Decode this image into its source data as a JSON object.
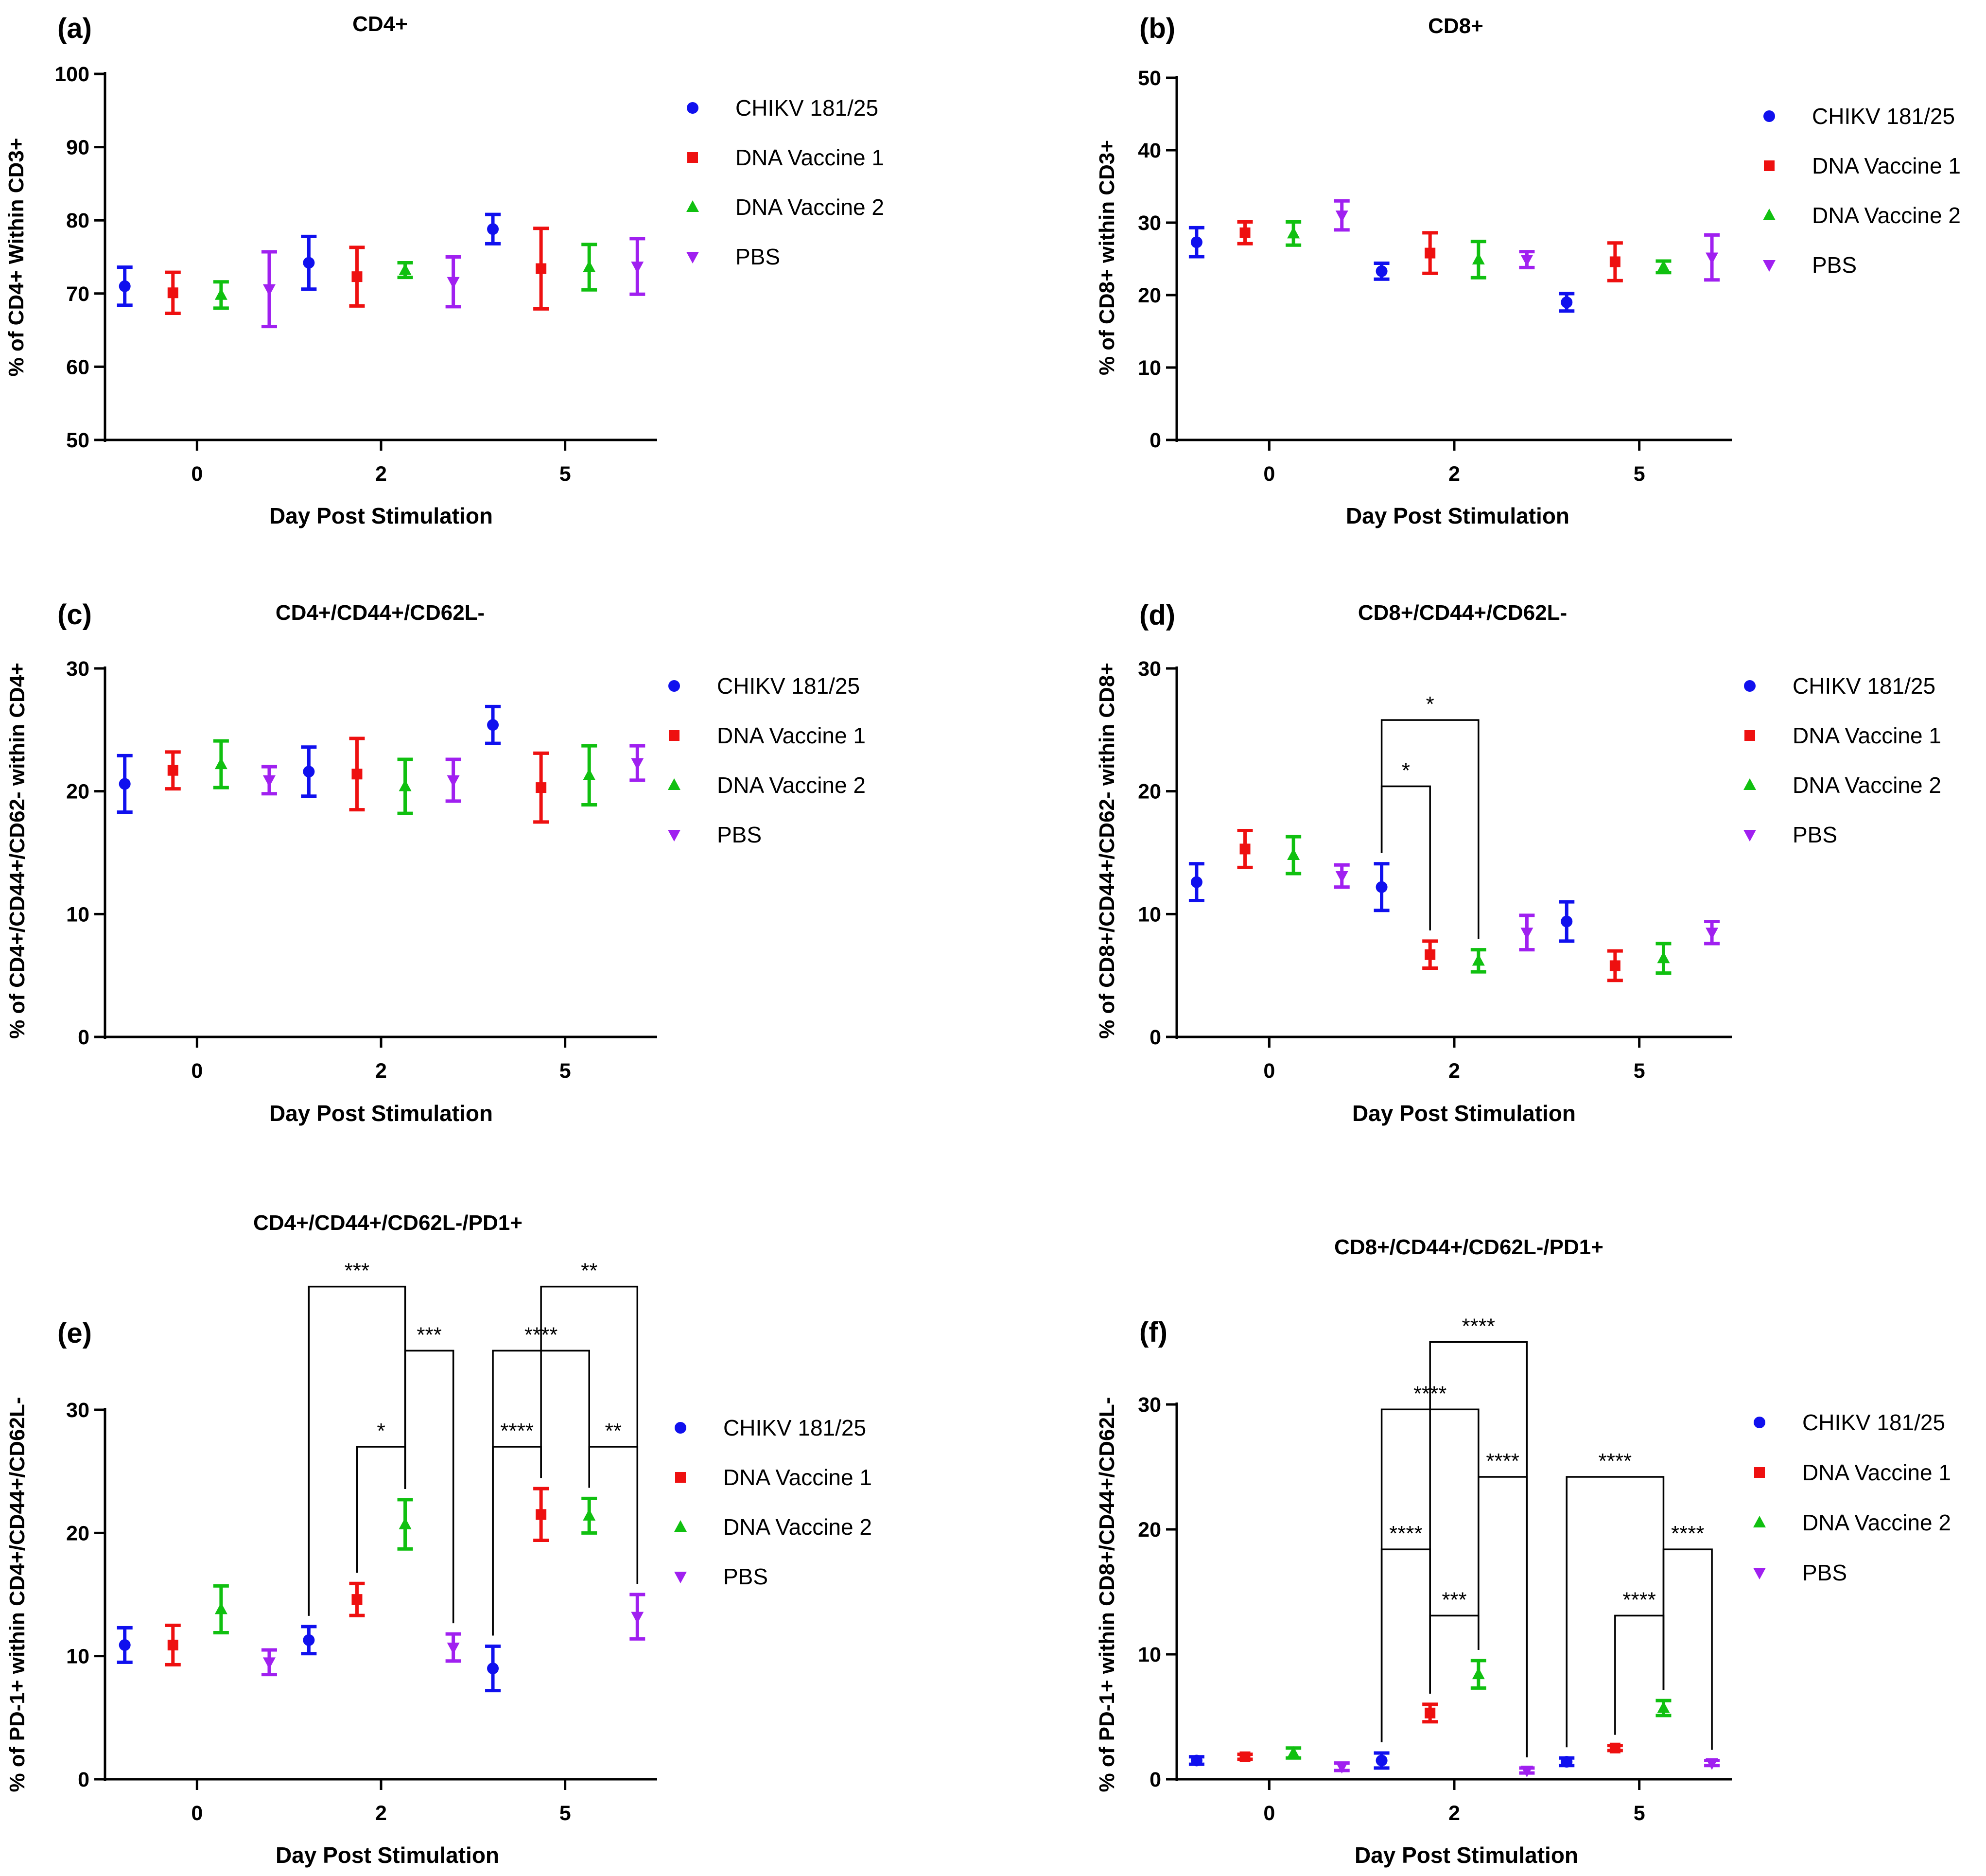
{
  "chart_data": [
    {
      "panel_label": "(a)",
      "type": "scatter",
      "title": "CD4+",
      "xlabel": "Day Post Stimulation",
      "ylabel": "% of CD4+ Within CD3+",
      "ylim": [
        50,
        100
      ],
      "yticks": [
        "50",
        "60",
        "70",
        "80",
        "90",
        "100"
      ],
      "categories": [
        "0",
        "2",
        "5"
      ],
      "series": [
        {
          "name": "CHIKV 181/25",
          "values": [
            71,
            74.2,
            78.8
          ],
          "errors": [
            2.6,
            3.6,
            2.0
          ]
        },
        {
          "name": "DNA Vaccine 1",
          "values": [
            70.1,
            72.3,
            73.4
          ],
          "errors": [
            2.8,
            4.0,
            5.5
          ]
        },
        {
          "name": "DNA Vaccine 2",
          "values": [
            69.8,
            73.2,
            73.6
          ],
          "errors": [
            1.8,
            1.0,
            3.1
          ]
        },
        {
          "name": "PBS",
          "values": [
            70.6,
            71.6,
            73.7
          ],
          "errors": [
            5.1,
            3.4,
            3.8
          ]
        }
      ],
      "significance": []
    },
    {
      "panel_label": "(b)",
      "type": "scatter",
      "title": "CD8+",
      "xlabel": "Day Post Stimulation",
      "ylabel": "% of CD8+ within CD3+",
      "ylim": [
        0,
        50
      ],
      "yticks": [
        "0",
        "10",
        "20",
        "30",
        "40",
        "50"
      ],
      "categories": [
        "0",
        "2",
        "5"
      ],
      "series": [
        {
          "name": "CHIKV 181/25",
          "values": [
            27.3,
            23.3,
            19.0
          ],
          "errors": [
            2.0,
            1.1,
            1.2
          ]
        },
        {
          "name": "DNA Vaccine 1",
          "values": [
            28.6,
            25.8,
            24.6
          ],
          "errors": [
            1.5,
            2.8,
            2.6
          ]
        },
        {
          "name": "DNA Vaccine 2",
          "values": [
            28.5,
            24.9,
            23.9
          ],
          "errors": [
            1.6,
            2.5,
            0.8
          ]
        },
        {
          "name": "PBS",
          "values": [
            31.0,
            24.9,
            25.2
          ],
          "errors": [
            2.0,
            1.1,
            3.1
          ]
        }
      ],
      "significance": []
    },
    {
      "panel_label": "(c)",
      "type": "scatter",
      "title": "CD4+/CD44+/CD62L-",
      "xlabel": "Day Post Stimulation",
      "ylabel": "% of CD4+/CD44+/CD62- within CD4+",
      "ylim": [
        0,
        30
      ],
      "yticks": [
        "0",
        "10",
        "20",
        "30"
      ],
      "categories": [
        "0",
        "2",
        "5"
      ],
      "series": [
        {
          "name": "CHIKV 181/25",
          "values": [
            20.6,
            21.6,
            25.4
          ],
          "errors": [
            2.3,
            2.0,
            1.5
          ]
        },
        {
          "name": "DNA Vaccine 1",
          "values": [
            21.7,
            21.4,
            20.3
          ],
          "errors": [
            1.5,
            2.9,
            2.8
          ]
        },
        {
          "name": "DNA Vaccine 2",
          "values": [
            22.2,
            20.4,
            21.3
          ],
          "errors": [
            1.9,
            2.2,
            2.4
          ]
        },
        {
          "name": "PBS",
          "values": [
            20.9,
            20.9,
            22.3
          ],
          "errors": [
            1.1,
            1.7,
            1.4
          ]
        }
      ],
      "significance": []
    },
    {
      "panel_label": "(d)",
      "type": "scatter",
      "title": "CD8+/CD44+/CD62L-",
      "xlabel": "Day Post Stimulation",
      "ylabel": "% of CD8+/CD44+/CD62- within CD8+",
      "ylim": [
        0,
        30
      ],
      "yticks": [
        "0",
        "10",
        "20",
        "30"
      ],
      "categories": [
        "0",
        "2",
        "5"
      ],
      "series": [
        {
          "name": "CHIKV 181/25",
          "values": [
            12.6,
            12.2,
            9.4
          ],
          "errors": [
            1.5,
            1.9,
            1.6
          ]
        },
        {
          "name": "DNA Vaccine 1",
          "values": [
            15.3,
            6.7,
            5.8
          ],
          "errors": [
            1.5,
            1.1,
            1.2
          ]
        },
        {
          "name": "DNA Vaccine 2",
          "values": [
            14.8,
            6.2,
            6.4
          ],
          "errors": [
            1.5,
            0.9,
            1.2
          ]
        },
        {
          "name": "PBS",
          "values": [
            13.1,
            8.5,
            8.5
          ],
          "errors": [
            0.9,
            1.4,
            0.9
          ]
        }
      ],
      "significance": [
        {
          "from": [
            1,
            0
          ],
          "to": [
            1,
            1
          ],
          "level": 20.4,
          "label": "*"
        },
        {
          "from": [
            1,
            0
          ],
          "to": [
            1,
            2
          ],
          "level": 25.8,
          "label": "*"
        }
      ]
    },
    {
      "panel_label": "(e)",
      "type": "scatter",
      "title": "CD4+/CD44+/CD62L-/PD1+",
      "xlabel": "Day Post Stimulation",
      "ylabel": "% of PD-1+ within CD4+/CD44+/CD62L-",
      "ylim": [
        0,
        30
      ],
      "yticks": [
        "0",
        "10",
        "20",
        "30"
      ],
      "categories": [
        "0",
        "2",
        "5"
      ],
      "series": [
        {
          "name": "CHIKV 181/25",
          "values": [
            10.9,
            11.3,
            9.0
          ],
          "errors": [
            1.4,
            1.1,
            1.8
          ]
        },
        {
          "name": "DNA Vaccine 1",
          "values": [
            10.9,
            14.6,
            21.5
          ],
          "errors": [
            1.6,
            1.3,
            2.1
          ]
        },
        {
          "name": "DNA Vaccine 2",
          "values": [
            13.8,
            20.7,
            21.4
          ],
          "errors": [
            1.9,
            2.0,
            1.4
          ]
        },
        {
          "name": "PBS",
          "values": [
            9.5,
            10.7,
            13.2
          ],
          "errors": [
            1.0,
            1.1,
            1.8
          ]
        }
      ],
      "significance": [
        {
          "from": [
            1,
            1
          ],
          "to": [
            1,
            2
          ],
          "level": 27.0,
          "label": "*"
        },
        {
          "from": [
            1,
            2
          ],
          "to": [
            1,
            3
          ],
          "level": 34.8,
          "label": "***"
        },
        {
          "from": [
            1,
            0
          ],
          "to": [
            1,
            2
          ],
          "level": 40.0,
          "label": "***"
        },
        {
          "from": [
            2,
            0
          ],
          "to": [
            2,
            1
          ],
          "level": 27.0,
          "label": "****"
        },
        {
          "from": [
            2,
            2
          ],
          "to": [
            2,
            3
          ],
          "level": 27.0,
          "label": "**"
        },
        {
          "from": [
            2,
            0
          ],
          "to": [
            2,
            2
          ],
          "level": 34.8,
          "label": "****"
        },
        {
          "from": [
            2,
            1
          ],
          "to": [
            2,
            3
          ],
          "level": 40.0,
          "label": "**"
        }
      ]
    },
    {
      "panel_label": "(f)",
      "type": "scatter",
      "title": "CD8+/CD44+/CD62L-/PD1+",
      "xlabel": "Day Post Stimulation",
      "ylabel": "% of PD-1+ within CD8+/CD44+/CD62L-",
      "ylim": [
        0,
        30
      ],
      "yticks": [
        "0",
        "10",
        "20",
        "30"
      ],
      "categories": [
        "0",
        "2",
        "5"
      ],
      "series": [
        {
          "name": "CHIKV 181/25",
          "values": [
            1.5,
            1.5,
            1.4
          ],
          "errors": [
            0.3,
            0.6,
            0.3
          ]
        },
        {
          "name": "DNA Vaccine 1",
          "values": [
            1.8,
            5.3,
            2.5
          ],
          "errors": [
            0.2,
            0.7,
            0.2
          ]
        },
        {
          "name": "DNA Vaccine 2",
          "values": [
            2.1,
            8.4,
            5.7
          ],
          "errors": [
            0.4,
            1.1,
            0.6
          ]
        },
        {
          "name": "PBS",
          "values": [
            1.0,
            0.7,
            1.3
          ],
          "errors": [
            0.3,
            0.2,
            0.2
          ]
        }
      ],
      "significance": [
        {
          "from": [
            1,
            1
          ],
          "to": [
            1,
            2
          ],
          "level": 13.1,
          "label": "***"
        },
        {
          "from": [
            1,
            0
          ],
          "to": [
            1,
            1
          ],
          "level": 18.4,
          "label": "****"
        },
        {
          "from": [
            1,
            2
          ],
          "to": [
            1,
            3
          ],
          "level": 24.2,
          "label": "****"
        },
        {
          "from": [
            1,
            0
          ],
          "to": [
            1,
            2
          ],
          "level": 29.6,
          "label": "****"
        },
        {
          "from": [
            1,
            1
          ],
          "to": [
            1,
            3
          ],
          "level": 35.0,
          "label": "****"
        },
        {
          "from": [
            2,
            1
          ],
          "to": [
            2,
            2
          ],
          "level": 13.1,
          "label": "****"
        },
        {
          "from": [
            2,
            2
          ],
          "to": [
            2,
            3
          ],
          "level": 18.4,
          "label": "****"
        },
        {
          "from": [
            2,
            0
          ],
          "to": [
            2,
            2
          ],
          "level": 24.2,
          "label": "****"
        }
      ]
    }
  ],
  "legend": [
    {
      "name": "CHIKV 181/25",
      "color": "#1010ee",
      "marker": "circle"
    },
    {
      "name": "DNA Vaccine 1",
      "color": "#ee1010",
      "marker": "square"
    },
    {
      "name": "DNA Vaccine 2",
      "color": "#10c010",
      "marker": "triangle-up"
    },
    {
      "name": "PBS",
      "color": "#a020f0",
      "marker": "triangle-down"
    }
  ]
}
